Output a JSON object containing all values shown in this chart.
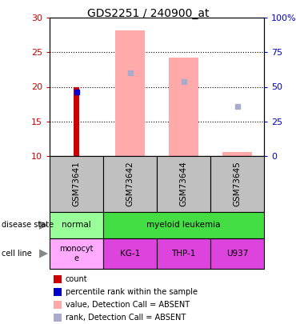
{
  "title": "GDS2251 / 240900_at",
  "samples": [
    "GSM73641",
    "GSM73642",
    "GSM73644",
    "GSM73645"
  ],
  "ylim_left": [
    10,
    30
  ],
  "ylim_right": [
    0,
    100
  ],
  "yticks_left": [
    10,
    15,
    20,
    25,
    30
  ],
  "yticks_right": [
    0,
    25,
    50,
    75,
    100
  ],
  "ytick_labels_right": [
    "0",
    "25",
    "50",
    "75",
    "100%"
  ],
  "count_values": [
    20.0,
    null,
    null,
    null
  ],
  "count_color": "#cc0000",
  "rank_values": [
    19.2,
    null,
    null,
    null
  ],
  "rank_color": "#0000cc",
  "absent_value_bars": [
    null,
    28.2,
    24.2,
    10.6
  ],
  "absent_value_color": "#ffaaaa",
  "absent_rank_dots": [
    null,
    22.0,
    20.8,
    17.2
  ],
  "absent_rank_color": "#aaaacc",
  "disease_state_colors": {
    "normal": "#99ff99",
    "myeloid leukemia": "#44dd44"
  },
  "cell_line_color": "#dd44dd",
  "cell_line_monocyte_color": "#ffaaff",
  "sample_box_color": "#c0c0c0",
  "left_axis_color": "#cc0000",
  "right_axis_color": "#0000cc",
  "legend_items": [
    {
      "label": "count",
      "color": "#cc0000"
    },
    {
      "label": "percentile rank within the sample",
      "color": "#0000cc"
    },
    {
      "label": "value, Detection Call = ABSENT",
      "color": "#ffaaaa"
    },
    {
      "label": "rank, Detection Call = ABSENT",
      "color": "#aaaacc"
    }
  ]
}
